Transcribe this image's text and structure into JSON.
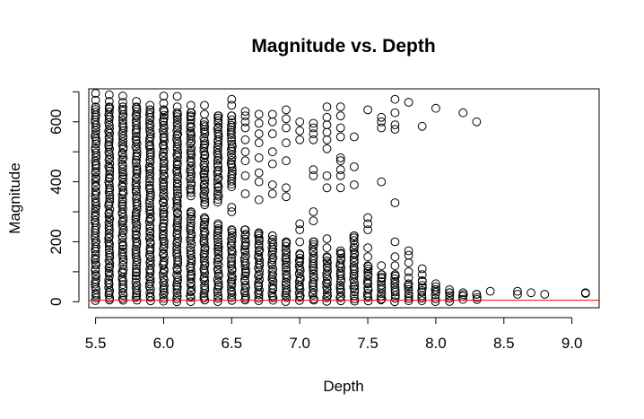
{
  "chart_data": {
    "type": "scatter",
    "title": "Magnitude vs. Depth",
    "xlabel": "Depth",
    "ylabel": "Magnitude",
    "xlim": [
      5.45,
      9.2
    ],
    "ylim": [
      -20,
      710
    ],
    "xticks": [
      5.5,
      6.0,
      6.5,
      7.0,
      7.5,
      8.0,
      8.5,
      9.0
    ],
    "xtick_labels": [
      "5.5",
      "6.0",
      "6.5",
      "7.0",
      "7.5",
      "8.0",
      "8.5",
      "9.0"
    ],
    "yticks": [
      0,
      100,
      200,
      300,
      400,
      500,
      600,
      700
    ],
    "ytick_labels": [
      "0",
      "",
      "200",
      "",
      "400",
      "",
      "600",
      ""
    ],
    "reference_line": {
      "y": 5,
      "color": "#ff0000"
    },
    "marker": "open-circle",
    "grid": false,
    "legend": "none",
    "columns": [
      {
        "x": 5.5,
        "ranges": [
          [
            0,
            650
          ]
        ],
        "outliers": [
          672,
          695
        ]
      },
      {
        "x": 5.6,
        "ranges": [
          [
            0,
            650
          ]
        ],
        "outliers": [
          668,
          690
        ]
      },
      {
        "x": 5.7,
        "ranges": [
          [
            0,
            650
          ]
        ],
        "outliers": [
          665,
          686
        ]
      },
      {
        "x": 5.8,
        "ranges": [
          [
            0,
            650
          ]
        ],
        "outliers": [
          668
        ]
      },
      {
        "x": 5.9,
        "ranges": [
          [
            0,
            640
          ]
        ],
        "outliers": [
          655
        ]
      },
      {
        "x": 6.0,
        "ranges": [
          [
            0,
            640
          ]
        ],
        "outliers": [
          662,
          686
        ]
      },
      {
        "x": 6.1,
        "ranges": [
          [
            0,
            630
          ]
        ],
        "outliers": [
          650,
          685
        ]
      },
      {
        "x": 6.2,
        "ranges": [
          [
            0,
            300
          ],
          [
            350,
            630
          ]
        ],
        "outliers": [
          655
        ]
      },
      {
        "x": 6.3,
        "ranges": [
          [
            0,
            280
          ],
          [
            320,
            600
          ]
        ],
        "outliers": [
          625,
          655
        ]
      },
      {
        "x": 6.4,
        "ranges": [
          [
            0,
            260
          ],
          [
            330,
            620
          ]
        ],
        "outliers": []
      },
      {
        "x": 6.5,
        "ranges": [
          [
            0,
            240
          ],
          [
            380,
            620
          ]
        ],
        "outliers": [
          655,
          675,
          300,
          315
        ]
      },
      {
        "x": 6.6,
        "ranges": [
          [
            0,
            240
          ]
        ],
        "outliers": [
          360,
          420,
          470,
          500,
          540,
          580,
          600,
          620,
          635
        ]
      },
      {
        "x": 6.7,
        "ranges": [
          [
            0,
            230
          ]
        ],
        "outliers": [
          340,
          400,
          430,
          480,
          530,
          560,
          595,
          625
        ]
      },
      {
        "x": 6.8,
        "ranges": [
          [
            0,
            220
          ]
        ],
        "outliers": [
          360,
          390,
          460,
          500,
          560,
          600,
          625
        ]
      },
      {
        "x": 6.9,
        "ranges": [
          [
            0,
            200
          ]
        ],
        "outliers": [
          350,
          380,
          470,
          530,
          580,
          610,
          640
        ]
      },
      {
        "x": 7.0,
        "ranges": [
          [
            0,
            160
          ]
        ],
        "outliers": [
          200,
          240,
          260,
          540,
          570,
          600
        ]
      },
      {
        "x": 7.1,
        "ranges": [
          [
            0,
            200
          ]
        ],
        "outliers": [
          270,
          300,
          420,
          440,
          540,
          560,
          580,
          595
        ]
      },
      {
        "x": 7.2,
        "ranges": [
          [
            0,
            150
          ]
        ],
        "outliers": [
          180,
          210,
          380,
          420,
          510,
          540,
          565,
          590,
          615,
          650
        ]
      },
      {
        "x": 7.3,
        "ranges": [
          [
            0,
            170
          ]
        ],
        "outliers": [
          380,
          420,
          440,
          470,
          480,
          550,
          580,
          620,
          650
        ]
      },
      {
        "x": 7.4,
        "ranges": [
          [
            0,
            220
          ]
        ],
        "outliers": [
          390,
          450,
          550
        ]
      },
      {
        "x": 7.5,
        "ranges": [
          [
            0,
            120
          ]
        ],
        "outliers": [
          150,
          180,
          240,
          260,
          280,
          640
        ]
      },
      {
        "x": 7.6,
        "ranges": [
          [
            0,
            90
          ]
        ],
        "outliers": [
          120,
          400,
          580,
          600,
          615
        ]
      },
      {
        "x": 7.7,
        "ranges": [
          [
            0,
            90
          ]
        ],
        "outliers": [
          120,
          150,
          200,
          330,
          575,
          590,
          630,
          675
        ]
      },
      {
        "x": 7.8,
        "ranges": [
          [
            0,
            60
          ]
        ],
        "outliers": [
          80,
          100,
          130,
          155,
          170,
          665
        ]
      },
      {
        "x": 7.9,
        "ranges": [
          [
            0,
            70
          ]
        ],
        "outliers": [
          90,
          110,
          585
        ]
      },
      {
        "x": 8.0,
        "ranges": [
          [
            0,
            40
          ]
        ],
        "outliers": [
          50,
          60,
          645
        ]
      },
      {
        "x": 8.1,
        "ranges": [
          [
            0,
            30
          ]
        ],
        "outliers": [
          40
        ]
      },
      {
        "x": 8.2,
        "ranges": [
          [
            5,
            30
          ]
        ],
        "outliers": [
          630
        ]
      },
      {
        "x": 8.3,
        "ranges": [
          [
            5,
            25
          ]
        ],
        "outliers": [
          600
        ]
      },
      {
        "x": 8.4,
        "ranges": [],
        "outliers": [
          35
        ]
      },
      {
        "x": 8.6,
        "ranges": [],
        "outliers": [
          25,
          35
        ]
      },
      {
        "x": 8.7,
        "ranges": [],
        "outliers": [
          30
        ]
      },
      {
        "x": 8.8,
        "ranges": [],
        "outliers": [
          25
        ]
      },
      {
        "x": 9.1,
        "ranges": [],
        "outliers": [
          30,
          28
        ]
      }
    ]
  }
}
